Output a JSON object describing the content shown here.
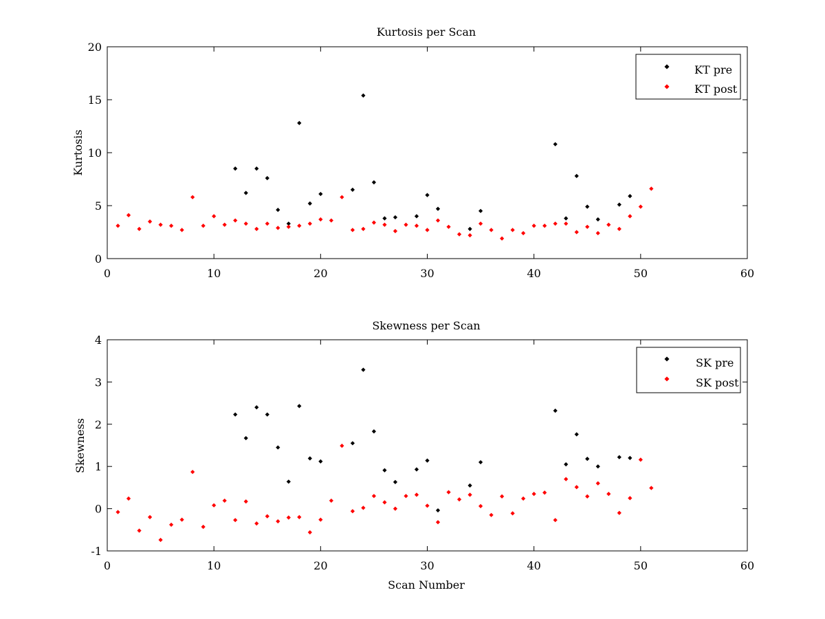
{
  "chart_data": [
    {
      "type": "scatter",
      "title": "Kurtosis per Scan",
      "xlabel": "",
      "ylabel": "Kurtosis",
      "xlim": [
        0,
        60
      ],
      "ylim": [
        0,
        20
      ],
      "xticks": [
        0,
        10,
        20,
        30,
        40,
        50,
        60
      ],
      "yticks": [
        0,
        5,
        10,
        15,
        20
      ],
      "grid": false,
      "legend_position": "top-right",
      "series": [
        {
          "name": "KT pre",
          "color": "#000000",
          "x": [
            12,
            13,
            14,
            15,
            16,
            17,
            18,
            19,
            20,
            23,
            24,
            25,
            26,
            27,
            29,
            30,
            31,
            34,
            35,
            42,
            43,
            44,
            45,
            46,
            48,
            49
          ],
          "y": [
            8.5,
            6.2,
            8.5,
            7.6,
            4.6,
            3.3,
            12.8,
            5.2,
            6.1,
            6.5,
            15.4,
            7.2,
            3.8,
            3.9,
            4.0,
            6.0,
            4.7,
            2.8,
            4.5,
            10.8,
            3.8,
            7.8,
            4.9,
            3.7,
            5.1,
            5.9
          ]
        },
        {
          "name": "KT post",
          "color": "#ff0000",
          "x": [
            1,
            2,
            3,
            4,
            5,
            6,
            7,
            8,
            9,
            10,
            11,
            12,
            13,
            14,
            15,
            16,
            17,
            18,
            19,
            20,
            21,
            22,
            23,
            24,
            25,
            26,
            27,
            28,
            29,
            30,
            31,
            32,
            33,
            34,
            35,
            36,
            37,
            38,
            39,
            40,
            41,
            42,
            43,
            44,
            45,
            46,
            47,
            48,
            49,
            50,
            51
          ],
          "y": [
            3.1,
            4.1,
            2.8,
            3.5,
            3.2,
            3.1,
            2.7,
            5.8,
            3.1,
            4.0,
            3.2,
            3.6,
            3.3,
            2.8,
            3.3,
            2.9,
            3.0,
            3.1,
            3.3,
            3.7,
            3.6,
            5.8,
            2.7,
            2.8,
            3.4,
            3.2,
            2.6,
            3.2,
            3.1,
            2.7,
            3.6,
            3.0,
            2.3,
            2.2,
            3.3,
            2.7,
            1.9,
            2.7,
            2.4,
            3.1,
            3.1,
            3.3,
            3.3,
            2.5,
            3.0,
            2.4,
            3.2,
            2.8,
            4.0,
            4.9,
            6.6
          ]
        }
      ]
    },
    {
      "type": "scatter",
      "title": "Skewness per Scan",
      "xlabel": "Scan Number",
      "ylabel": "Skewness",
      "xlim": [
        0,
        60
      ],
      "ylim": [
        -1,
        4
      ],
      "xticks": [
        0,
        10,
        20,
        30,
        40,
        50,
        60
      ],
      "yticks": [
        -1,
        0,
        1,
        2,
        3,
        4
      ],
      "grid": false,
      "legend_position": "top-right",
      "series": [
        {
          "name": "SK pre",
          "color": "#000000",
          "x": [
            12,
            13,
            14,
            15,
            16,
            17,
            18,
            19,
            20,
            23,
            24,
            25,
            26,
            27,
            29,
            30,
            31,
            34,
            35,
            42,
            43,
            44,
            45,
            46,
            48,
            49
          ],
          "y": [
            2.23,
            1.67,
            2.4,
            2.23,
            1.45,
            0.64,
            2.43,
            1.19,
            1.12,
            1.55,
            3.29,
            1.83,
            0.91,
            0.63,
            0.93,
            1.14,
            -0.04,
            0.55,
            1.1,
            2.32,
            1.05,
            1.76,
            1.18,
            1.0,
            1.22,
            1.2
          ]
        },
        {
          "name": "SK post",
          "color": "#ff0000",
          "x": [
            1,
            2,
            3,
            4,
            5,
            6,
            7,
            8,
            9,
            10,
            11,
            12,
            13,
            14,
            15,
            16,
            17,
            18,
            19,
            20,
            21,
            22,
            23,
            24,
            25,
            26,
            27,
            28,
            29,
            30,
            31,
            32,
            33,
            34,
            35,
            36,
            37,
            38,
            39,
            40,
            41,
            42,
            43,
            44,
            45,
            46,
            47,
            48,
            49,
            50,
            51
          ],
          "y": [
            -0.08,
            0.24,
            -0.52,
            -0.2,
            -0.74,
            -0.38,
            -0.26,
            0.87,
            -0.43,
            0.08,
            0.19,
            -0.27,
            0.17,
            -0.35,
            -0.18,
            -0.3,
            -0.21,
            -0.2,
            -0.56,
            -0.26,
            0.19,
            1.49,
            -0.06,
            0.02,
            0.3,
            0.15,
            0.0,
            0.3,
            0.33,
            0.07,
            -0.32,
            0.39,
            0.22,
            0.33,
            0.06,
            -0.15,
            0.29,
            -0.11,
            0.24,
            0.35,
            0.38,
            -0.27,
            0.7,
            0.51,
            0.29,
            0.6,
            0.35,
            -0.1,
            0.25,
            1.16,
            0.49
          ]
        }
      ]
    }
  ]
}
